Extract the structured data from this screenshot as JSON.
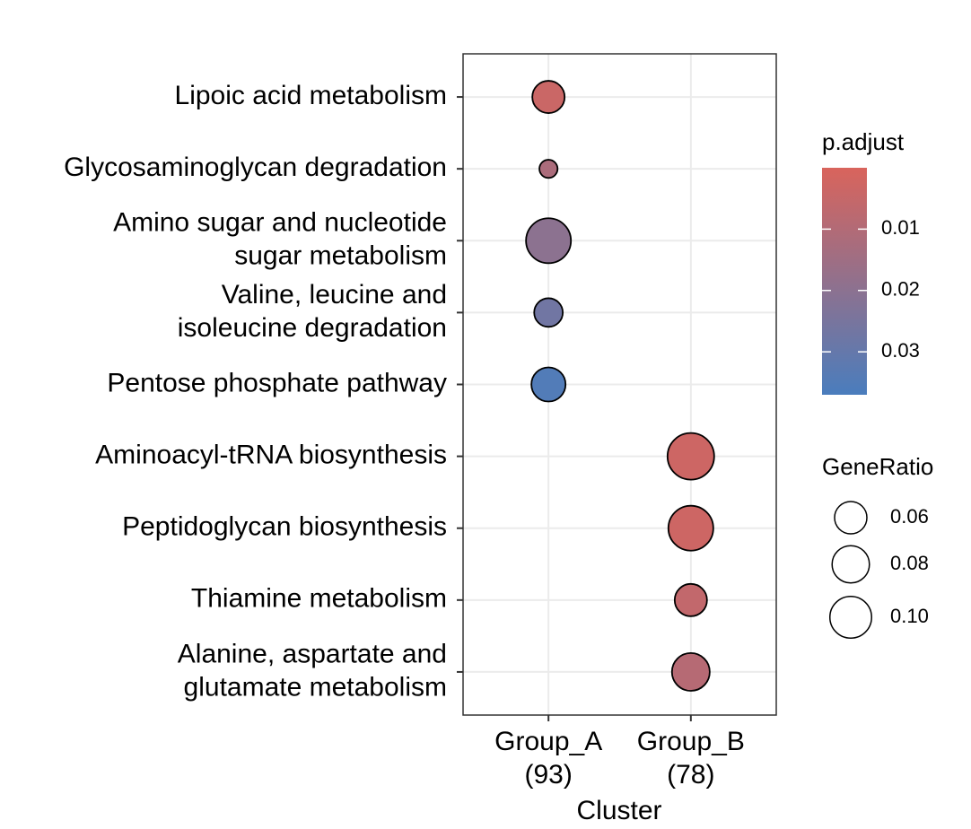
{
  "chart_data": {
    "type": "dot",
    "x_title": "Cluster",
    "groups": [
      {
        "label": [
          "Group_A",
          "(93)"
        ],
        "terms": [
          [
            "Lipoic acid metabolism"
          ],
          [
            "Glycosaminoglycan degradation"
          ],
          [
            "Amino sugar and nucleotide",
            "sugar metabolism"
          ],
          [
            "Valine, leucine and",
            "isoleucine degradation"
          ],
          [
            "Pentose phosphate pathway"
          ]
        ],
        "p_adjust": [
          0.004,
          0.012,
          0.02,
          0.027,
          0.035
        ],
        "gene_ratio": [
          0.06,
          0.019,
          0.116,
          0.047,
          0.067
        ]
      },
      {
        "label": [
          "Group_B",
          "(78)"
        ],
        "terms": [
          [
            "Aminoacyl-tRNA biosynthesis"
          ],
          [
            "Peptidoglycan biosynthesis"
          ],
          [
            "Thiamine metabolism"
          ],
          [
            "Alanine, aspartate and",
            "glutamate metabolism"
          ]
        ],
        "p_adjust": [
          0.003,
          0.003,
          0.006,
          0.009
        ],
        "gene_ratio": [
          0.125,
          0.116,
          0.06,
          0.082
        ]
      }
    ],
    "color_legend": {
      "title": "p.adjust",
      "clim": [
        0,
        0.037
      ],
      "ticks": [
        0.01,
        0.02,
        0.03
      ],
      "low_color": "#d9645c",
      "high_color": "#4a7dbd"
    },
    "size_legend": {
      "title": "GeneRatio",
      "values": [
        0.06,
        0.08,
        {
          "value": 0.1,
          "label": "0.10"
        }
      ]
    },
    "grid": true
  }
}
